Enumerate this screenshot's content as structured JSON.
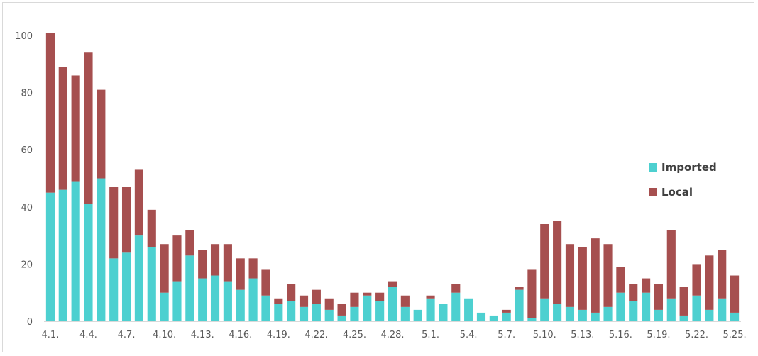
{
  "chart_data": {
    "type": "bar",
    "stacked": true,
    "categories": [
      "4.1.",
      "4.2.",
      "4.3.",
      "4.4.",
      "4.5.",
      "4.6.",
      "4.7.",
      "4.8.",
      "4.9.",
      "4.10.",
      "4.11.",
      "4.12.",
      "4.13.",
      "4.14.",
      "4.15.",
      "4.16.",
      "4.17.",
      "4.18.",
      "4.19.",
      "4.20.",
      "4.21.",
      "4.22.",
      "4.23.",
      "4.24.",
      "4.25.",
      "4.26.",
      "4.27.",
      "4.28.",
      "4.29.",
      "4.30.",
      "5.1.",
      "5.2.",
      "5.3.",
      "5.4.",
      "5.5.",
      "5.6.",
      "5.7.",
      "5.8.",
      "5.9.",
      "5.10.",
      "5.11.",
      "5.12.",
      "5.13.",
      "5.14.",
      "5.15.",
      "5.16.",
      "5.17.",
      "5.18.",
      "5.19.",
      "5.20.",
      "5.21.",
      "5.22.",
      "5.23.",
      "5.24.",
      "5.25."
    ],
    "tick_labels": [
      "4.1.",
      "4.4.",
      "4.7.",
      "4.10.",
      "4.13.",
      "4.16.",
      "4.19.",
      "4.22.",
      "4.25.",
      "4.28.",
      "5.1.",
      "5.4.",
      "5.7.",
      "5.10.",
      "5.13.",
      "5.16.",
      "5.19.",
      "5.22.",
      "5.25."
    ],
    "tick_every": 3,
    "series": [
      {
        "name": "Imported",
        "color": "#4dd0d0",
        "values": [
          45,
          46,
          49,
          41,
          50,
          22,
          24,
          30,
          26,
          10,
          14,
          23,
          15,
          16,
          14,
          11,
          15,
          9,
          6,
          7,
          5,
          6,
          4,
          2,
          5,
          9,
          7,
          12,
          5,
          4,
          8,
          6,
          10,
          8,
          3,
          2,
          3,
          11,
          1,
          8,
          6,
          5,
          4,
          3,
          5,
          10,
          7,
          10,
          4,
          8,
          2,
          9,
          4,
          8,
          3
        ]
      },
      {
        "name": "Local",
        "color": "#a64f4f",
        "values": [
          56,
          43,
          37,
          53,
          31,
          25,
          23,
          23,
          13,
          17,
          16,
          9,
          10,
          11,
          13,
          11,
          7,
          9,
          2,
          6,
          4,
          5,
          4,
          4,
          5,
          1,
          3,
          2,
          4,
          0,
          1,
          0,
          3,
          0,
          0,
          0,
          1,
          1,
          17,
          26,
          29,
          22,
          22,
          26,
          22,
          9,
          6,
          5,
          9,
          24,
          10,
          11,
          19,
          17,
          13
        ]
      }
    ],
    "yticks": [
      0,
      20,
      40,
      60,
      80,
      100
    ],
    "ylim": [
      0,
      102
    ],
    "legend": {
      "position": "right",
      "items": [
        {
          "label": "Imported",
          "color": "#4dd0d0"
        },
        {
          "label": "Local",
          "color": "#a64f4f"
        }
      ]
    },
    "grid": false,
    "title": "",
    "xlabel": "",
    "ylabel": ""
  }
}
